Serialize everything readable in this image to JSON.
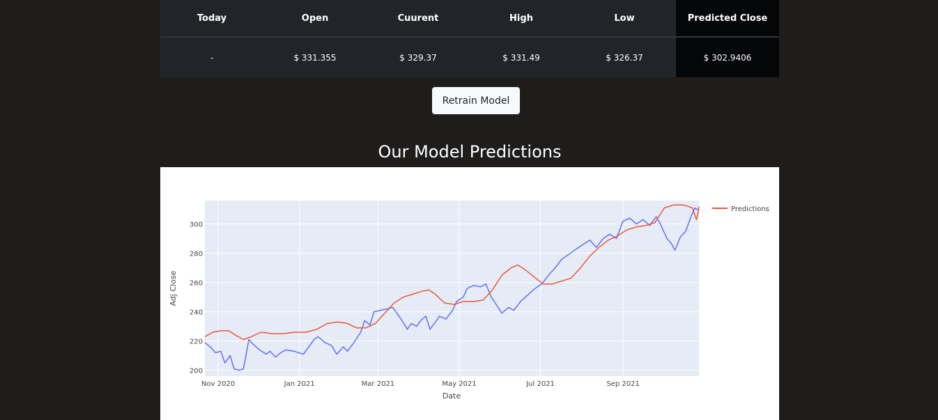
{
  "quote_table": {
    "headers": [
      "Today",
      "Open",
      "Cuurent",
      "High",
      "Low",
      "Predicted Close"
    ],
    "row": [
      "-",
      "$ 331.355",
      "$ 329.37",
      "$ 331.49",
      "$ 326.37",
      "$ 302.9406"
    ]
  },
  "retrain_button": {
    "label": "Retrain Model"
  },
  "section_title": "Our Model Predictions",
  "colors": {
    "actual": "#636efa",
    "predictions": "#ef553b",
    "plot_bg": "#e5ecf6"
  },
  "chart_data": {
    "type": "line",
    "title": "",
    "xlabel": "Date",
    "ylabel": "Adj Close",
    "x_ticks": [
      "Nov 2020",
      "Jan 2021",
      "Mar 2021",
      "May 2021",
      "Jul 2021",
      "Sep 2021"
    ],
    "y_ticks": [
      200,
      220,
      240,
      260,
      280,
      300
    ],
    "xlim": [
      "2020-10-22",
      "2021-10-28"
    ],
    "ylim": [
      196,
      316
    ],
    "grid": true,
    "legend": "top-right",
    "series": [
      {
        "name": "",
        "color": "#636efa",
        "points": [
          [
            "2020-10-22",
            219
          ],
          [
            "2020-10-26",
            216
          ],
          [
            "2020-10-30",
            212
          ],
          [
            "2020-11-03",
            213
          ],
          [
            "2020-11-06",
            205
          ],
          [
            "2020-11-10",
            210
          ],
          [
            "2020-11-13",
            201
          ],
          [
            "2020-11-17",
            200
          ],
          [
            "2020-11-20",
            201
          ],
          [
            "2020-11-24",
            221
          ],
          [
            "2020-11-27",
            218
          ],
          [
            "2020-12-02",
            214
          ],
          [
            "2020-12-07",
            211
          ],
          [
            "2020-12-10",
            213
          ],
          [
            "2020-12-14",
            209
          ],
          [
            "2020-12-18",
            212
          ],
          [
            "2020-12-22",
            214
          ],
          [
            "2020-12-28",
            213
          ],
          [
            "2021-01-04",
            211
          ],
          [
            "2021-01-08",
            216
          ],
          [
            "2021-01-12",
            221
          ],
          [
            "2021-01-15",
            223
          ],
          [
            "2021-01-20",
            219
          ],
          [
            "2021-01-25",
            217
          ],
          [
            "2021-01-29",
            211
          ],
          [
            "2021-02-03",
            216
          ],
          [
            "2021-02-06",
            213
          ],
          [
            "2021-02-11",
            219
          ],
          [
            "2021-02-16",
            226
          ],
          [
            "2021-02-19",
            234
          ],
          [
            "2021-02-23",
            231
          ],
          [
            "2021-02-26",
            240
          ],
          [
            "2021-03-03",
            241
          ],
          [
            "2021-03-08",
            242
          ],
          [
            "2021-03-12",
            243
          ],
          [
            "2021-03-16",
            238
          ],
          [
            "2021-03-19",
            234
          ],
          [
            "2021-03-23",
            228
          ],
          [
            "2021-03-26",
            232
          ],
          [
            "2021-03-30",
            230
          ],
          [
            "2021-04-02",
            234
          ],
          [
            "2021-04-06",
            237
          ],
          [
            "2021-04-09",
            228
          ],
          [
            "2021-04-14",
            234
          ],
          [
            "2021-04-16",
            237
          ],
          [
            "2021-04-21",
            235
          ],
          [
            "2021-04-26",
            241
          ],
          [
            "2021-04-29",
            247
          ],
          [
            "2021-05-04",
            250
          ],
          [
            "2021-05-07",
            256
          ],
          [
            "2021-05-12",
            258
          ],
          [
            "2021-05-17",
            257
          ],
          [
            "2021-05-21",
            259
          ],
          [
            "2021-05-25",
            250
          ],
          [
            "2021-05-28",
            246
          ],
          [
            "2021-06-02",
            239
          ],
          [
            "2021-06-07",
            243
          ],
          [
            "2021-06-11",
            241
          ],
          [
            "2021-06-16",
            247
          ],
          [
            "2021-06-22",
            252
          ],
          [
            "2021-06-27",
            256
          ],
          [
            "2021-07-02",
            259
          ],
          [
            "2021-07-07",
            265
          ],
          [
            "2021-07-12",
            270
          ],
          [
            "2021-07-17",
            276
          ],
          [
            "2021-07-22",
            279
          ],
          [
            "2021-07-28",
            283
          ],
          [
            "2021-08-02",
            286
          ],
          [
            "2021-08-07",
            289
          ],
          [
            "2021-08-12",
            284
          ],
          [
            "2021-08-17",
            290
          ],
          [
            "2021-08-22",
            293
          ],
          [
            "2021-08-27",
            290
          ],
          [
            "2021-09-01",
            302
          ],
          [
            "2021-09-06",
            304
          ],
          [
            "2021-09-11",
            300
          ],
          [
            "2021-09-16",
            303
          ],
          [
            "2021-09-21",
            299
          ],
          [
            "2021-09-26",
            305
          ],
          [
            "2021-09-29",
            300
          ],
          [
            "2021-10-04",
            290
          ],
          [
            "2021-10-07",
            287
          ],
          [
            "2021-10-10",
            282
          ],
          [
            "2021-10-14",
            291
          ],
          [
            "2021-10-18",
            295
          ],
          [
            "2021-10-22",
            305
          ],
          [
            "2021-10-25",
            311
          ],
          [
            "2021-10-28",
            309
          ]
        ]
      },
      {
        "name": "Predictions",
        "color": "#ef553b",
        "points": [
          [
            "2020-10-22",
            223
          ],
          [
            "2020-10-28",
            226
          ],
          [
            "2020-11-03",
            227
          ],
          [
            "2020-11-09",
            227
          ],
          [
            "2020-11-14",
            224
          ],
          [
            "2020-11-20",
            221
          ],
          [
            "2020-11-26",
            223
          ],
          [
            "2020-12-03",
            226
          ],
          [
            "2020-12-12",
            225
          ],
          [
            "2020-12-20",
            225
          ],
          [
            "2020-12-28",
            226
          ],
          [
            "2021-01-06",
            226
          ],
          [
            "2021-01-14",
            228
          ],
          [
            "2021-01-22",
            232
          ],
          [
            "2021-01-30",
            233
          ],
          [
            "2021-02-06",
            232
          ],
          [
            "2021-02-13",
            229
          ],
          [
            "2021-02-20",
            229
          ],
          [
            "2021-02-27",
            232
          ],
          [
            "2021-03-06",
            239
          ],
          [
            "2021-03-13",
            246
          ],
          [
            "2021-03-20",
            250
          ],
          [
            "2021-03-27",
            252
          ],
          [
            "2021-04-03",
            254
          ],
          [
            "2021-04-08",
            255
          ],
          [
            "2021-04-13",
            252
          ],
          [
            "2021-04-20",
            246
          ],
          [
            "2021-04-27",
            245
          ],
          [
            "2021-05-04",
            247
          ],
          [
            "2021-05-12",
            247
          ],
          [
            "2021-05-19",
            248
          ],
          [
            "2021-05-26",
            255
          ],
          [
            "2021-06-02",
            265
          ],
          [
            "2021-06-09",
            270
          ],
          [
            "2021-06-14",
            272
          ],
          [
            "2021-06-19",
            269
          ],
          [
            "2021-06-26",
            264
          ],
          [
            "2021-07-03",
            259
          ],
          [
            "2021-07-10",
            259
          ],
          [
            "2021-07-17",
            261
          ],
          [
            "2021-07-24",
            263
          ],
          [
            "2021-07-31",
            270
          ],
          [
            "2021-08-07",
            278
          ],
          [
            "2021-08-14",
            284
          ],
          [
            "2021-08-21",
            289
          ],
          [
            "2021-08-28",
            292
          ],
          [
            "2021-09-04",
            296
          ],
          [
            "2021-09-11",
            298
          ],
          [
            "2021-09-18",
            299
          ],
          [
            "2021-09-25",
            301
          ],
          [
            "2021-10-02",
            311
          ],
          [
            "2021-10-09",
            313
          ],
          [
            "2021-10-16",
            313
          ],
          [
            "2021-10-20",
            312
          ],
          [
            "2021-10-23",
            311
          ],
          [
            "2021-10-25",
            306
          ],
          [
            "2021-10-26",
            303
          ],
          [
            "2021-10-27",
            306
          ],
          [
            "2021-10-28",
            312
          ]
        ]
      }
    ]
  }
}
